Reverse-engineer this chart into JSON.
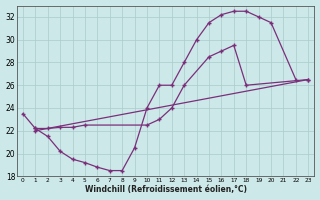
{
  "background_color": "#cce8e8",
  "grid_color": "#aacccc",
  "line_color": "#7b2f7b",
  "xlim": [
    -0.5,
    23.5
  ],
  "ylim": [
    18,
    33
  ],
  "yticks": [
    18,
    20,
    22,
    24,
    26,
    28,
    30,
    32
  ],
  "xticks": [
    0,
    1,
    2,
    3,
    4,
    5,
    6,
    7,
    8,
    9,
    10,
    11,
    12,
    13,
    14,
    15,
    16,
    17,
    18,
    19,
    20,
    21,
    22,
    23
  ],
  "xlabel": "Windchill (Refroidissement éolien,°C)",
  "line1_x": [
    0,
    1,
    2,
    3,
    4,
    5,
    6,
    7,
    8,
    9,
    10,
    11,
    12,
    13,
    14,
    15,
    16,
    17,
    18,
    19,
    20,
    22
  ],
  "line1_y": [
    23.5,
    22.2,
    21.5,
    20.2,
    19.5,
    19.2,
    18.8,
    18.5,
    18.5,
    20.5,
    24.0,
    26.0,
    26.0,
    28.0,
    30.0,
    31.5,
    32.2,
    32.5,
    32.5,
    32.0,
    31.5,
    26.5
  ],
  "line2_x": [
    1,
    2,
    3,
    4,
    5,
    10,
    11,
    12,
    13,
    15,
    16,
    17,
    18,
    23
  ],
  "line2_y": [
    22.2,
    22.2,
    22.3,
    22.3,
    22.5,
    22.5,
    23.0,
    24.0,
    26.0,
    28.5,
    29.0,
    29.5,
    26.0,
    26.5
  ],
  "line3_x": [
    1,
    23
  ],
  "line3_y": [
    22.0,
    26.5
  ]
}
